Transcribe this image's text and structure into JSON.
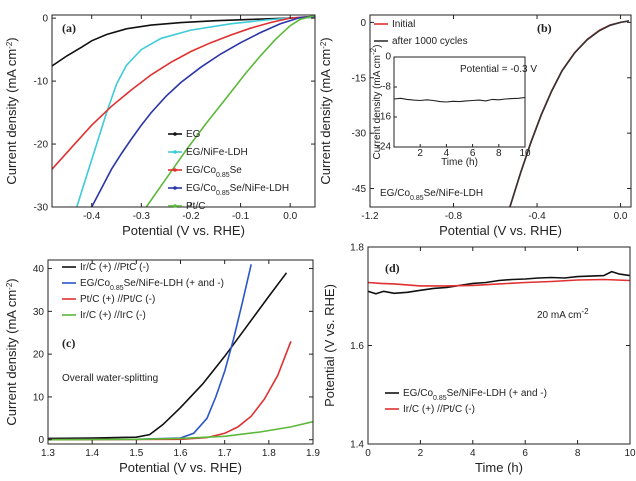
{
  "chart_data": [
    {
      "type": "line",
      "panel_label": "(a)",
      "xlabel": "Potential (V vs. RHE)",
      "ylabel": "Current density (mA cm⁻²)",
      "xlim": [
        -0.48,
        0.05
      ],
      "ylim": [
        -30,
        0.5
      ],
      "xticks": [
        -0.4,
        -0.3,
        -0.2,
        -0.1,
        0.0
      ],
      "xtick_labels": [
        "-0.4",
        "-0.3",
        "-0.2",
        "-0.1",
        "0.0"
      ],
      "yticks": [
        0,
        -10,
        -20,
        -30
      ],
      "ytick_labels": [
        "0",
        "-10",
        "-20",
        "-30"
      ],
      "legend_position": "bottom-right",
      "series": [
        {
          "name": "EG",
          "color": "#111111",
          "x": [
            -0.48,
            -0.45,
            -0.42,
            -0.4,
            -0.37,
            -0.33,
            -0.28,
            -0.22,
            -0.15,
            -0.08,
            0.0,
            0.05
          ],
          "y": [
            -7.6,
            -6.0,
            -4.6,
            -3.6,
            -2.6,
            -1.7,
            -1.1,
            -0.7,
            -0.4,
            -0.2,
            0.0,
            0.15
          ]
        },
        {
          "name": "EG/NiFe-LDH",
          "color": "#3ecbd8",
          "x": [
            -0.43,
            -0.41,
            -0.39,
            -0.37,
            -0.35,
            -0.33,
            -0.3,
            -0.26,
            -0.2,
            -0.12,
            -0.05,
            0.0,
            0.05
          ],
          "y": [
            -30,
            -25,
            -20,
            -15,
            -10.5,
            -7.5,
            -5.0,
            -3.2,
            -1.9,
            -0.9,
            -0.3,
            0.0,
            0.2
          ]
        },
        {
          "name": "EG/Co0.85Se",
          "color": "#e03030",
          "x": [
            -0.48,
            -0.44,
            -0.4,
            -0.36,
            -0.32,
            -0.28,
            -0.24,
            -0.2,
            -0.16,
            -0.12,
            -0.08,
            -0.04,
            0.0,
            0.05
          ],
          "y": [
            -24.0,
            -20.5,
            -17.0,
            -14.0,
            -11.4,
            -9.0,
            -7.0,
            -5.3,
            -3.9,
            -2.7,
            -1.6,
            -0.7,
            0.0,
            0.3
          ]
        },
        {
          "name": "EG/Co0.85Se/NiFe-LDH",
          "color": "#2a35a8",
          "x": [
            -0.4,
            -0.38,
            -0.36,
            -0.34,
            -0.32,
            -0.3,
            -0.28,
            -0.25,
            -0.22,
            -0.18,
            -0.14,
            -0.1,
            -0.06,
            -0.02,
            0.02,
            0.05
          ],
          "y": [
            -30,
            -27,
            -24,
            -21.5,
            -19.2,
            -17,
            -15,
            -12.4,
            -10.2,
            -7.8,
            -5.7,
            -3.9,
            -2.3,
            -0.9,
            0.1,
            0.3
          ]
        },
        {
          "name": "Pt/C",
          "color": "#5bb83a",
          "x": [
            -0.29,
            -0.25,
            -0.21,
            -0.17,
            -0.13,
            -0.09,
            -0.06,
            -0.03,
            0.0,
            0.02,
            0.05
          ],
          "y": [
            -30,
            -25.5,
            -21.0,
            -16.8,
            -12.8,
            -8.8,
            -6.0,
            -3.4,
            -1.2,
            -0.2,
            0.4
          ]
        }
      ]
    },
    {
      "type": "line",
      "panel_label": "(b)",
      "xlabel": "Potential (V vs. RHE)",
      "ylabel": "Current density (mA cm⁻²)",
      "xlim": [
        -1.2,
        0.05
      ],
      "ylim": [
        -50,
        2
      ],
      "xticks": [
        -1.2,
        -0.8,
        -0.4,
        0.0
      ],
      "xtick_labels": [
        "-1.2",
        "-0.8",
        "-0.4",
        "0.0"
      ],
      "yticks": [
        0,
        -15,
        -30,
        -45
      ],
      "ytick_labels": [
        "0",
        "-15",
        "-30",
        "-45"
      ],
      "annotation": "EG/Co0.85Se/NiFe-LDH",
      "legend_position": "top-left",
      "series": [
        {
          "name": "Initial",
          "color": "#e03030",
          "x": [
            -0.53,
            -0.48,
            -0.43,
            -0.38,
            -0.33,
            -0.28,
            -0.22,
            -0.16,
            -0.1,
            -0.05,
            0.0,
            0.04
          ],
          "y": [
            -50,
            -41,
            -32.5,
            -25,
            -18.5,
            -13,
            -8.2,
            -4.6,
            -2.1,
            -0.7,
            0.0,
            0.4
          ]
        },
        {
          "name": "after 1000 cycles",
          "color": "#333333",
          "x": [
            -0.53,
            -0.48,
            -0.43,
            -0.38,
            -0.33,
            -0.28,
            -0.22,
            -0.16,
            -0.1,
            -0.05,
            0.0,
            0.04
          ],
          "y": [
            -50,
            -41,
            -32.6,
            -25.1,
            -18.6,
            -13.1,
            -8.3,
            -4.7,
            -2.2,
            -0.8,
            0.0,
            0.4
          ]
        }
      ],
      "inset": {
        "xlabel": "Time (h)",
        "ylabel": "Current density (mA cm⁻²)",
        "annotation": "Potential = -0.3 V",
        "xlim": [
          0,
          10
        ],
        "ylim": [
          -24,
          0
        ],
        "xticks": [
          2,
          4,
          6,
          8,
          10
        ],
        "xtick_labels": [
          "2",
          "4",
          "6",
          "8",
          "10"
        ],
        "yticks": [
          0,
          -8,
          -16,
          -24
        ],
        "ytick_labels": [
          "0",
          "-8",
          "-16",
          "-24"
        ],
        "series": [
          {
            "name": "",
            "color": "#222222",
            "x": [
              0,
              0.5,
              1,
              1.5,
              2,
              2.5,
              3,
              3.5,
              4,
              4.5,
              5,
              5.5,
              6,
              6.5,
              7,
              7.5,
              8,
              8.5,
              9,
              9.5,
              10
            ],
            "y": [
              -11.2,
              -11.0,
              -11.3,
              -11.5,
              -11.6,
              -11.4,
              -11.6,
              -11.9,
              -12.0,
              -11.8,
              -11.9,
              -11.7,
              -11.6,
              -11.5,
              -11.7,
              -11.3,
              -11.4,
              -11.2,
              -11.1,
              -11.0,
              -10.8
            ]
          }
        ]
      }
    },
    {
      "type": "line",
      "panel_label": "(c)",
      "xlabel": "Potential (V vs. RHE)",
      "ylabel": "Current density (mA cm⁻²)",
      "xlim": [
        1.3,
        1.9
      ],
      "ylim": [
        -1,
        42
      ],
      "xticks": [
        1.3,
        1.4,
        1.5,
        1.6,
        1.7,
        1.8,
        1.9
      ],
      "xtick_labels": [
        "1.3",
        "1.4",
        "1.5",
        "1.6",
        "1.7",
        "1.8",
        "1.9"
      ],
      "yticks": [
        0,
        10,
        20,
        30,
        40
      ],
      "ytick_labels": [
        "0",
        "10",
        "20",
        "30",
        "40"
      ],
      "annotation": "Overall water-splitting",
      "legend_position": "top-left",
      "series": [
        {
          "name": "Ir/C (+) //PtC (-)",
          "color": "#111111",
          "x": [
            1.3,
            1.4,
            1.5,
            1.53,
            1.56,
            1.6,
            1.65,
            1.7,
            1.75,
            1.8,
            1.84
          ],
          "y": [
            0.3,
            0.4,
            0.6,
            1.2,
            3.5,
            7.5,
            13.0,
            19.5,
            26.5,
            33.5,
            39.0
          ]
        },
        {
          "name": "EG/Co0.85Se/NiFe-LDH (+ and -)",
          "color": "#2a55c8",
          "x": [
            1.3,
            1.5,
            1.6,
            1.63,
            1.66,
            1.68,
            1.7,
            1.72,
            1.74,
            1.76
          ],
          "y": [
            0.0,
            0.1,
            0.4,
            1.5,
            5.0,
            10.0,
            16.0,
            23.5,
            32.0,
            41.0
          ]
        },
        {
          "name": "Pt/C (+) //Pt/C (-)",
          "color": "#e03030",
          "x": [
            1.3,
            1.6,
            1.66,
            1.7,
            1.73,
            1.76,
            1.79,
            1.82,
            1.85
          ],
          "y": [
            0.0,
            0.1,
            0.5,
            1.5,
            3.0,
            5.5,
            9.5,
            15.0,
            23.0
          ]
        },
        {
          "name": "Ir/C (+) //IrC (-)",
          "color": "#5bb83a",
          "x": [
            1.3,
            1.5,
            1.6,
            1.7,
            1.78,
            1.85,
            1.9
          ],
          "y": [
            0.0,
            0.1,
            0.3,
            0.8,
            1.8,
            3.0,
            4.2
          ]
        }
      ]
    },
    {
      "type": "line",
      "panel_label": "(d)",
      "xlabel": "Time (h)",
      "ylabel": "Potential (V vs. RHE)",
      "xlim": [
        0,
        10
      ],
      "ylim": [
        1.4,
        1.8
      ],
      "xticks": [
        0,
        2,
        4,
        6,
        8,
        10
      ],
      "xtick_labels": [
        "0",
        "2",
        "4",
        "6",
        "8",
        "10"
      ],
      "yticks": [
        1.4,
        1.6,
        1.8
      ],
      "ytick_labels": [
        "1.4",
        "1.6",
        "1.8"
      ],
      "annotation": "20 mA cm⁻²",
      "legend_position": "bottom-left",
      "series": [
        {
          "name": "EG/Co0.85Se/NiFe-LDH (+ and -)",
          "color": "#111111",
          "x": [
            0,
            0.3,
            0.6,
            1,
            1.5,
            2,
            2.5,
            3,
            3.5,
            4,
            4.5,
            5,
            5.5,
            6,
            6.5,
            7,
            7.5,
            8,
            8.5,
            9,
            9.3,
            9.6,
            10
          ],
          "y": [
            1.71,
            1.705,
            1.71,
            1.706,
            1.708,
            1.712,
            1.716,
            1.718,
            1.722,
            1.726,
            1.728,
            1.732,
            1.734,
            1.735,
            1.737,
            1.738,
            1.737,
            1.74,
            1.741,
            1.742,
            1.75,
            1.745,
            1.742
          ]
        },
        {
          "name": "Ir/C (+) //Pt/C (-)",
          "color": "#e03030",
          "x": [
            0,
            0.5,
            1,
            2,
            3,
            4,
            5,
            6,
            7,
            8,
            9,
            10
          ],
          "y": [
            1.728,
            1.726,
            1.725,
            1.721,
            1.721,
            1.722,
            1.725,
            1.728,
            1.73,
            1.733,
            1.734,
            1.732
          ]
        }
      ]
    }
  ],
  "legend_display": {
    "a": [
      {
        "pre": "EG",
        "sub": "",
        "post": ""
      },
      {
        "pre": "EG/NiFe-LDH",
        "sub": "",
        "post": ""
      },
      {
        "pre": "EG/Co",
        "sub": "0.85",
        "post": "Se"
      },
      {
        "pre": "EG/Co",
        "sub": "0.85",
        "post": "Se/NiFe-LDH"
      },
      {
        "pre": "Pt/C",
        "sub": "",
        "post": ""
      }
    ],
    "b": [
      {
        "pre": "Initial",
        "sub": "",
        "post": ""
      },
      {
        "pre": "after 1000 cycles",
        "sub": "",
        "post": ""
      }
    ],
    "c": [
      {
        "pre": "Ir/C (+) //PtC (-)",
        "sub": "",
        "post": ""
      },
      {
        "pre": "EG/Co",
        "sub": "0.85",
        "post": "Se/NiFe-LDH (+ and -)"
      },
      {
        "pre": "Pt/C (+) //Pt/C (-)",
        "sub": "",
        "post": ""
      },
      {
        "pre": "Ir/C (+) //IrC (-)",
        "sub": "",
        "post": ""
      }
    ],
    "d": [
      {
        "pre": "EG/Co",
        "sub": "0.85",
        "post": "Se/NiFe-LDH (+ and -)"
      },
      {
        "pre": "Ir/C (+) //Pt/C (-)",
        "sub": "",
        "post": ""
      }
    ]
  },
  "annotation_display": {
    "b_label": {
      "pre": "EG/Co",
      "sub": "0.85",
      "post": "Se/NiFe-LDH"
    },
    "inset_ylabel": "Current density (mA cm",
    "ylabel_main": "Current density (mA cm",
    "d_ann": "20 mA cm"
  }
}
